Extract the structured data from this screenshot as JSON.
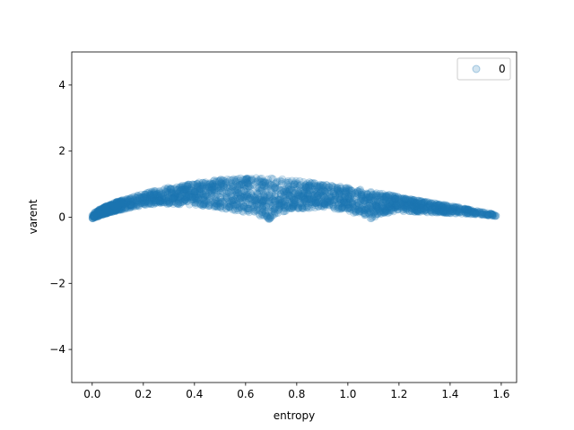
{
  "chart_data": {
    "type": "scatter",
    "xlabel": "entropy",
    "ylabel": "varent",
    "xlim": [
      -0.08,
      1.66
    ],
    "ylim": [
      -5.0,
      5.0
    ],
    "xticks": [
      0.0,
      0.2,
      0.4,
      0.6,
      0.8,
      1.0,
      1.2,
      1.4,
      1.6
    ],
    "xtick_labels": [
      "0.0",
      "0.2",
      "0.4",
      "0.6",
      "0.8",
      "1.0",
      "1.2",
      "1.4",
      "1.6"
    ],
    "yticks": [
      -4,
      -2,
      0,
      2,
      4
    ],
    "ytick_labels": [
      "−4",
      "−2",
      "0",
      "2",
      "4"
    ],
    "grid": false,
    "legend": {
      "position": "top-right",
      "entries": [
        "0"
      ]
    },
    "marker_color": "#1f77b4",
    "marker_alpha": 0.2,
    "series": [
      {
        "name": "0",
        "upper_envelope": {
          "x": [
            0.0,
            0.02,
            0.05,
            0.1,
            0.15,
            0.2,
            0.3,
            0.4,
            0.5,
            0.6,
            0.7,
            0.8,
            0.9,
            1.0,
            1.1,
            1.2,
            1.3,
            1.4,
            1.5,
            1.58
          ],
          "y": [
            0.1,
            0.2,
            0.32,
            0.48,
            0.6,
            0.72,
            0.9,
            1.05,
            1.15,
            1.2,
            1.18,
            1.12,
            1.0,
            0.9,
            0.78,
            0.62,
            0.48,
            0.35,
            0.2,
            0.08
          ]
        },
        "lower_envelope": {
          "x": [
            0.0,
            0.05,
            0.1,
            0.2,
            0.3,
            0.4,
            0.5,
            0.6,
            0.65,
            0.69,
            0.72,
            0.8,
            0.9,
            1.0,
            1.05,
            1.09,
            1.12,
            1.2,
            1.3,
            1.4,
            1.5,
            1.58
          ],
          "y": [
            -0.05,
            0.1,
            0.2,
            0.35,
            0.4,
            0.38,
            0.28,
            0.15,
            0.05,
            -0.08,
            0.1,
            0.25,
            0.3,
            0.2,
            0.05,
            -0.08,
            0.08,
            0.18,
            0.15,
            0.12,
            0.08,
            0.03
          ]
        }
      }
    ]
  }
}
